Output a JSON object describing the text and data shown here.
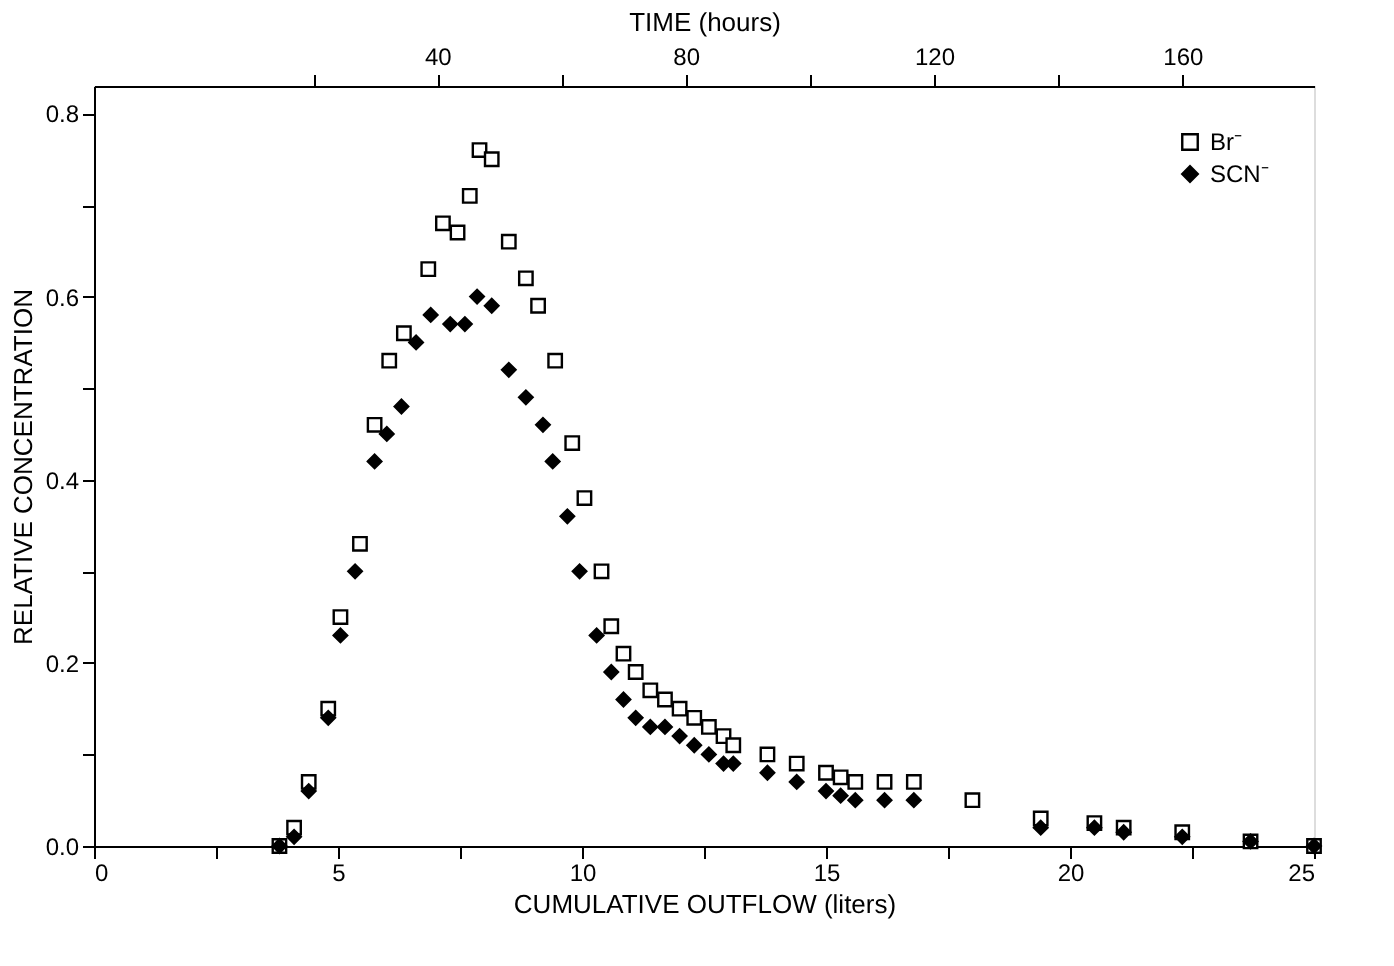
{
  "chart_data": {
    "type": "scatter",
    "xlabel": "CUMULATIVE  OUTFLOW (liters)",
    "ylabel": "RELATIVE   CONCENTRATION",
    "x2label": "TIME  (hours)",
    "xlim": [
      0,
      25
    ],
    "ylim": [
      0,
      0.83
    ],
    "xticks": [
      0,
      {
        "value": 2.5,
        "label": null
      },
      5,
      {
        "value": 7.5,
        "label": null
      },
      10,
      {
        "value": 12.5,
        "label": null
      },
      15,
      {
        "value": 17.5,
        "label": null
      },
      20,
      {
        "value": 22.5,
        "label": null
      },
      25
    ],
    "yticks": [
      {
        "value": 0,
        "label": "0.0"
      },
      {
        "value": 0.1,
        "label": null
      },
      0.2,
      {
        "value": 0.3,
        "label": null
      },
      0.4,
      {
        "value": 0.5,
        "label": null
      },
      0.6,
      {
        "value": 0.7,
        "label": null
      },
      0.8
    ],
    "x2lim": [
      -15.3,
      181.2
    ],
    "x2ticks": [
      {
        "value": 20,
        "label": null
      },
      40,
      {
        "value": 60,
        "label": null
      },
      80,
      {
        "value": 100,
        "label": null
      },
      120,
      {
        "value": 140,
        "label": null
      },
      160
    ],
    "grid": false,
    "legend": "top right",
    "series": [
      {
        "name": "Br⁻",
        "color": "#000000",
        "marker": "square",
        "x": [
          3.8,
          4.1,
          4.4,
          4.8,
          5.05,
          5.45,
          5.75,
          6.05,
          6.35,
          6.85,
          7.15,
          7.45,
          7.7,
          7.9,
          8.15,
          8.5,
          8.85,
          9.1,
          9.45,
          9.8,
          10.05,
          10.4,
          10.6,
          10.85,
          11.1,
          11.4,
          11.7,
          12.0,
          12.3,
          12.6,
          12.9,
          13.1,
          13.8,
          14.4,
          15.0,
          15.3,
          15.6,
          16.2,
          16.8,
          18.0,
          19.4,
          20.5,
          21.1,
          22.3,
          23.7,
          25.0
        ],
        "values": [
          0.0,
          0.02,
          0.07,
          0.15,
          0.25,
          0.33,
          0.46,
          0.53,
          0.56,
          0.63,
          0.68,
          0.67,
          0.71,
          0.76,
          0.75,
          0.66,
          0.62,
          0.59,
          0.53,
          0.44,
          0.38,
          0.3,
          0.24,
          0.21,
          0.19,
          0.17,
          0.16,
          0.15,
          0.14,
          0.13,
          0.12,
          0.11,
          0.1,
          0.09,
          0.08,
          0.075,
          0.07,
          0.07,
          0.07,
          0.05,
          0.03,
          0.025,
          0.02,
          0.015,
          0.005,
          0.0
        ]
      },
      {
        "name": "SCN⁻",
        "color": "#000000",
        "marker": "diamond",
        "x": [
          3.8,
          4.1,
          4.4,
          4.8,
          5.05,
          5.35,
          5.75,
          6.0,
          6.3,
          6.6,
          6.9,
          7.3,
          7.6,
          7.85,
          8.15,
          8.5,
          8.85,
          9.2,
          9.4,
          9.7,
          9.95,
          10.3,
          10.6,
          10.85,
          11.1,
          11.4,
          11.7,
          12.0,
          12.3,
          12.6,
          12.9,
          13.1,
          13.8,
          14.4,
          15.0,
          15.3,
          15.6,
          16.2,
          16.8,
          19.4,
          20.5,
          21.1,
          22.3,
          23.7,
          25.0
        ],
        "values": [
          0.0,
          0.01,
          0.06,
          0.14,
          0.23,
          0.3,
          0.42,
          0.45,
          0.48,
          0.55,
          0.58,
          0.57,
          0.57,
          0.6,
          0.59,
          0.52,
          0.49,
          0.46,
          0.42,
          0.36,
          0.3,
          0.23,
          0.19,
          0.16,
          0.14,
          0.13,
          0.13,
          0.12,
          0.11,
          0.1,
          0.09,
          0.09,
          0.08,
          0.07,
          0.06,
          0.055,
          0.05,
          0.05,
          0.05,
          0.02,
          0.02,
          0.015,
          0.01,
          0.005,
          0.0
        ]
      }
    ]
  }
}
